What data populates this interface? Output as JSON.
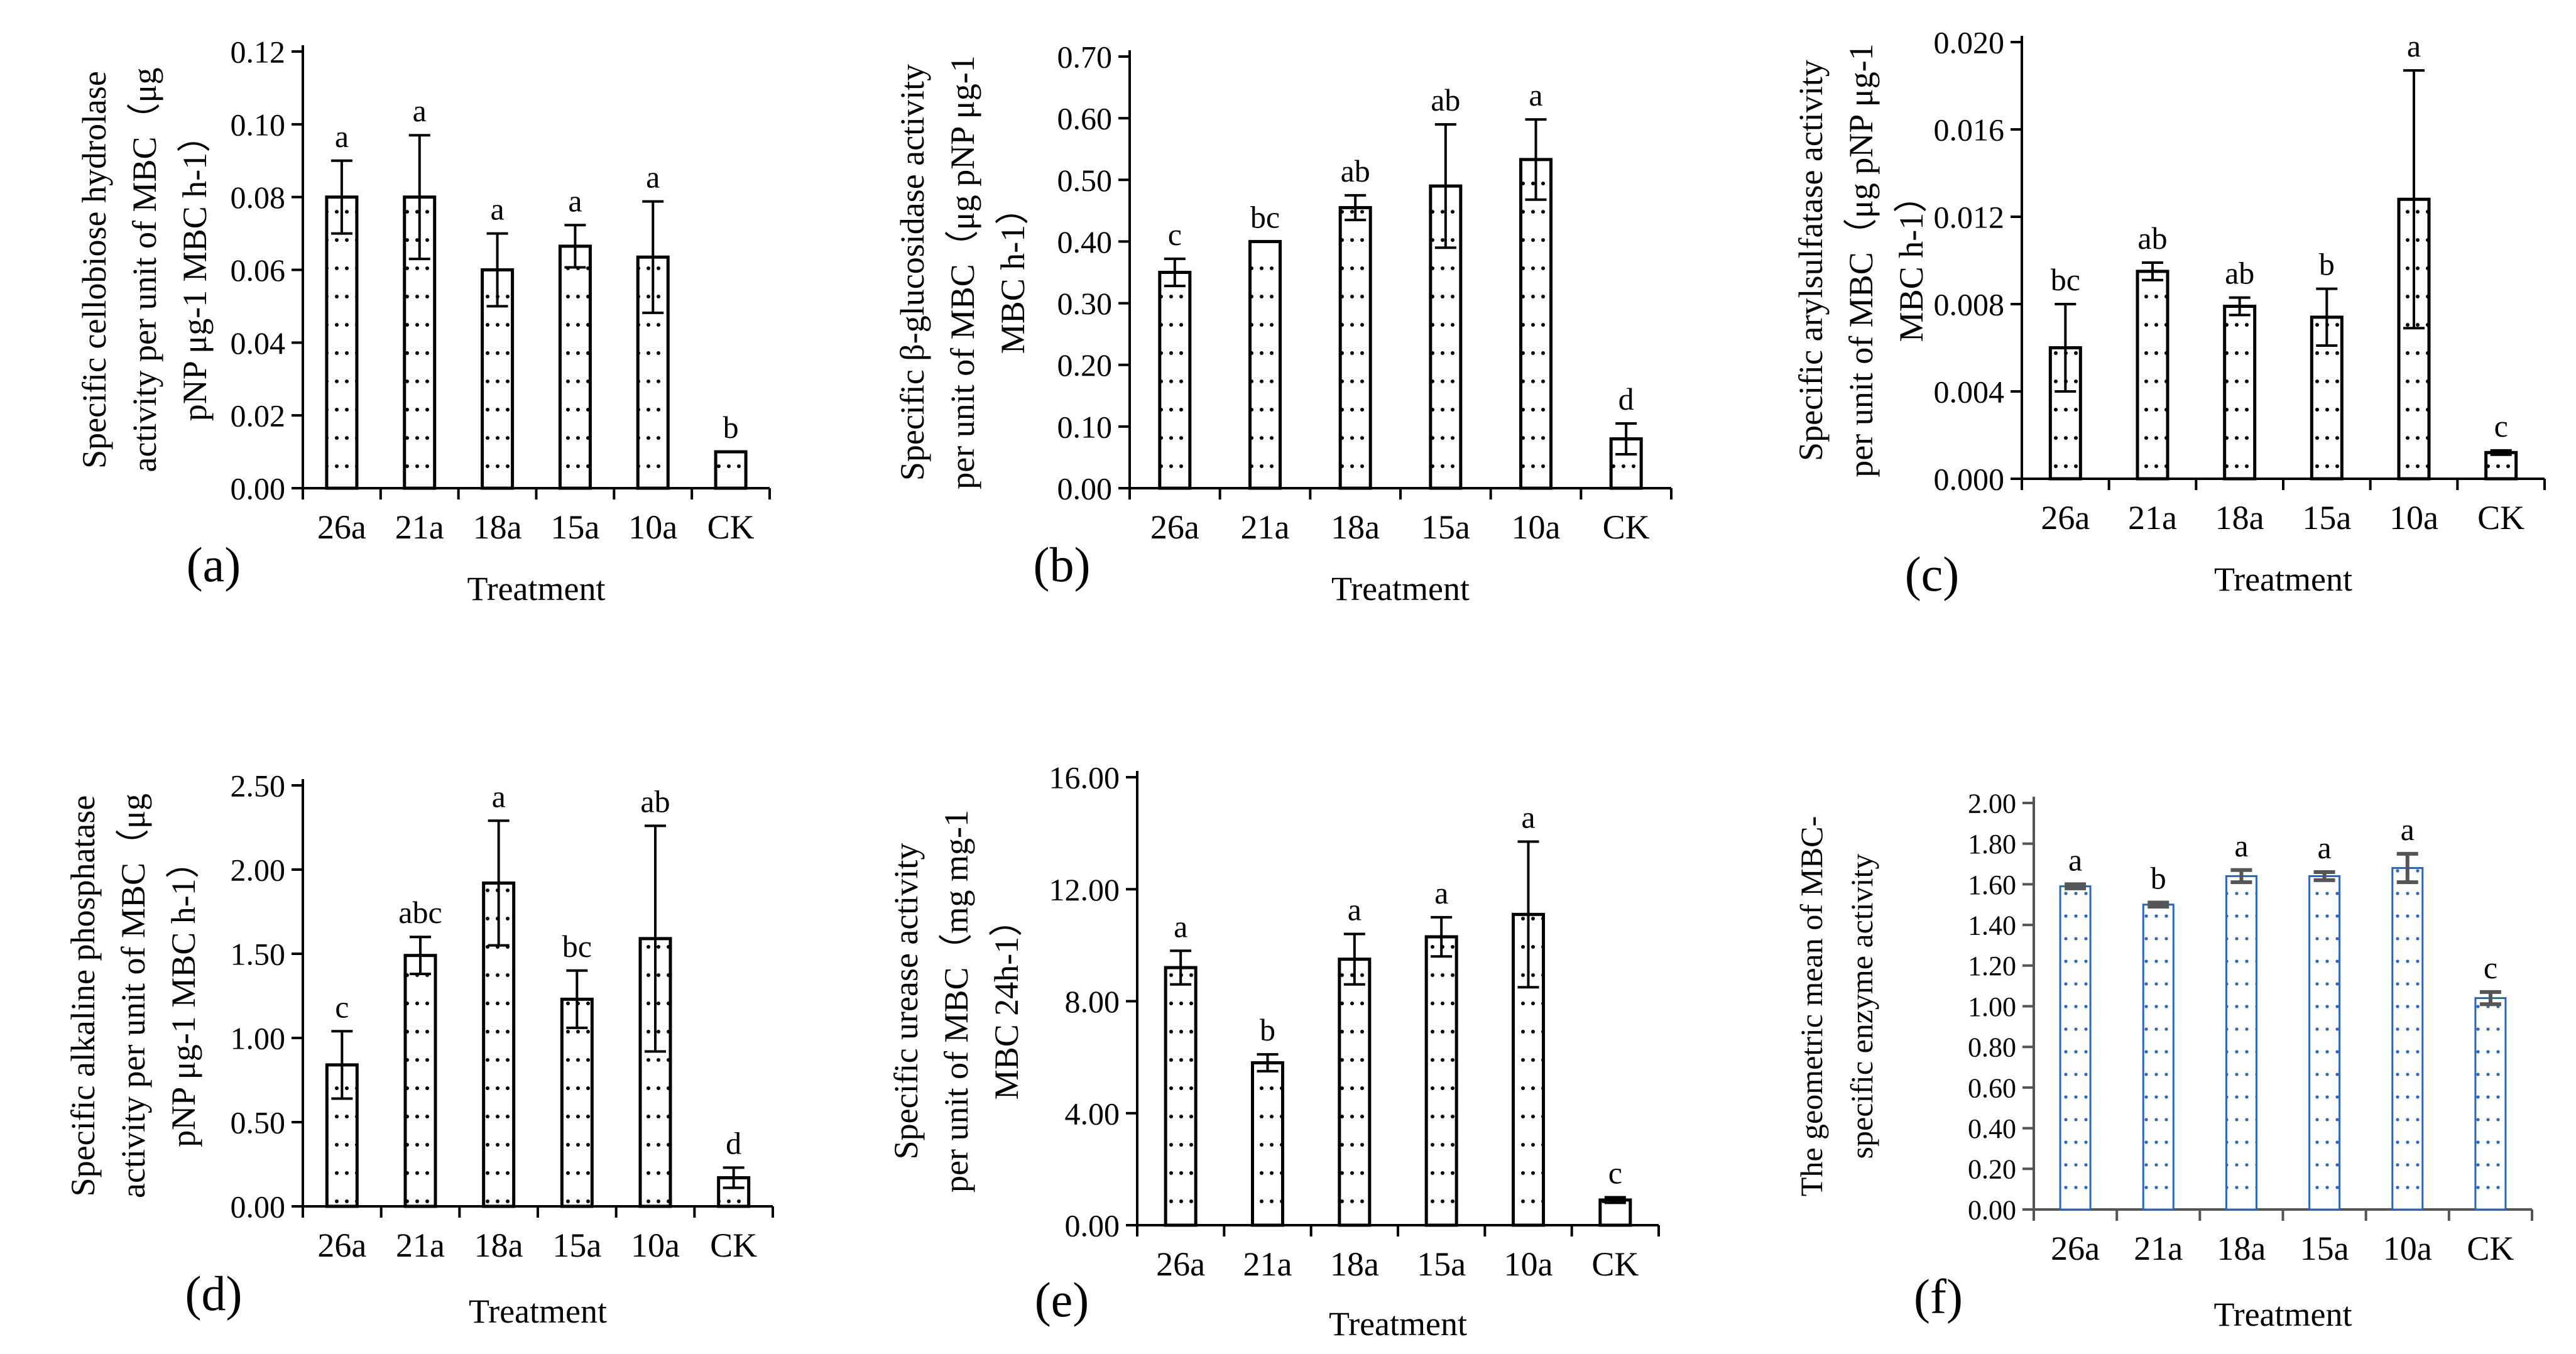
{
  "figure": {
    "treatment_label": "Treatment",
    "categories": [
      "26a",
      "21a",
      "18a",
      "15a",
      "10a",
      "CK"
    ]
  },
  "chart_data": [
    {
      "type": "bar",
      "panel": "(a)",
      "xlabel": "Treatment",
      "ylabel_lines": [
        "Specific cellobiose hydrolase",
        "activity per unit of MBC（μg",
        "pNP μg-1 MBC h-1）"
      ],
      "categories": [
        "26a",
        "21a",
        "18a",
        "15a",
        "10a",
        "CK"
      ],
      "values": [
        0.08,
        0.08,
        0.06,
        0.0665,
        0.0635,
        0.01
      ],
      "errors": [
        0.01,
        0.017,
        0.01,
        0.0058,
        0.0153,
        0.0
      ],
      "significance": [
        "a",
        "a",
        "a",
        "a",
        "a",
        "b"
      ],
      "ylim": [
        0,
        0.12
      ],
      "yticks": [
        0,
        0.02,
        0.04,
        0.06,
        0.08,
        0.1,
        0.12
      ],
      "ytick_labels": [
        "0.00",
        "0.02",
        "0.04",
        "0.06",
        "0.08",
        "0.10",
        "0.12"
      ],
      "bar_style": "dotted"
    },
    {
      "type": "bar",
      "panel": "(b)",
      "xlabel": "Treatment",
      "ylabel_lines": [
        "Specific β-glucosidase activity",
        "per unit of MBC（μg pNP μg-1",
        "MBC h-1）"
      ],
      "categories": [
        "26a",
        "21a",
        "18a",
        "15a",
        "10a",
        "CK"
      ],
      "values": [
        0.35,
        0.4,
        0.455,
        0.49,
        0.533,
        0.08
      ],
      "errors": [
        0.022,
        0.0,
        0.02,
        0.1,
        0.065,
        0.025
      ],
      "significance": [
        "c",
        "bc",
        "ab",
        "ab",
        "a",
        "d"
      ],
      "ylim": [
        0,
        0.7
      ],
      "yticks": [
        0,
        0.1,
        0.2,
        0.3,
        0.4,
        0.5,
        0.6,
        0.7
      ],
      "ytick_labels": [
        "0.00",
        "0.10",
        "0.20",
        "0.30",
        "0.40",
        "0.50",
        "0.60",
        "0.70"
      ],
      "bar_style": "dotted"
    },
    {
      "type": "bar",
      "panel": "(c)",
      "xlabel": "Treatment",
      "ylabel_lines": [
        "Specific arylsulfatase activity",
        "per unit of MBC（μg pNP μg-1",
        "MBC h-1）"
      ],
      "categories": [
        "26a",
        "21a",
        "18a",
        "15a",
        "10a",
        "CK"
      ],
      "values": [
        0.006,
        0.0095,
        0.0079,
        0.0074,
        0.0128,
        0.0012
      ],
      "errors": [
        0.002,
        0.0004,
        0.0004,
        0.0013,
        0.0059,
        0.0001
      ],
      "significance": [
        "bc",
        "ab",
        "ab",
        "b",
        "a",
        "c"
      ],
      "ylim": [
        0,
        0.02
      ],
      "yticks": [
        0,
        0.004,
        0.008,
        0.012,
        0.016,
        0.02
      ],
      "ytick_labels": [
        "0.000",
        "0.004",
        "0.008",
        "0.012",
        "0.016",
        "0.020"
      ],
      "bar_style": "dotted"
    },
    {
      "type": "bar",
      "panel": "(d)",
      "xlabel": "Treatment",
      "ylabel_lines": [
        "Specific alkaline phosphatase",
        "activity per unit of MBC（μg",
        "pNP μg-1 MBC h-1）"
      ],
      "categories": [
        "26a",
        "21a",
        "18a",
        "15a",
        "10a",
        "CK"
      ],
      "values": [
        0.84,
        1.49,
        1.92,
        1.23,
        1.59,
        0.17
      ],
      "errors": [
        0.2,
        0.11,
        0.37,
        0.17,
        0.67,
        0.06
      ],
      "significance": [
        "c",
        "abc",
        "a",
        "bc",
        "ab",
        "d"
      ],
      "ylim": [
        0,
        2.5
      ],
      "yticks": [
        0,
        0.5,
        1,
        1.5,
        2,
        2.5
      ],
      "ytick_labels": [
        "0.00",
        "0.50",
        "1.00",
        "1.50",
        "2.00",
        "2.50"
      ],
      "bar_style": "dotted"
    },
    {
      "type": "bar",
      "panel": "(e)",
      "xlabel": "Treatment",
      "ylabel_lines": [
        "Specific urease activity",
        "per unit of MBC（mg mg-1",
        "MBC 24h-1）"
      ],
      "categories": [
        "26a",
        "21a",
        "18a",
        "15a",
        "10a",
        "CK"
      ],
      "values": [
        9.2,
        5.8,
        9.5,
        10.3,
        11.1,
        0.9
      ],
      "errors": [
        0.6,
        0.3,
        0.9,
        0.7,
        2.6,
        0.1
      ],
      "significance": [
        "a",
        "b",
        "a",
        "a",
        "a",
        "c"
      ],
      "ylim": [
        0,
        16
      ],
      "yticks": [
        0,
        4,
        8,
        12,
        16
      ],
      "ytick_labels": [
        "0.00",
        "4.00",
        "8.00",
        "12.00",
        "16.00"
      ],
      "bar_style": "dotted"
    },
    {
      "type": "bar",
      "panel": "(f)",
      "xlabel": "Treatment",
      "ylabel_lines": [
        "The geometric mean of  MBC-",
        "specific enzyme activity"
      ],
      "categories": [
        "26a",
        "21a",
        "18a",
        "15a",
        "10a",
        "CK"
      ],
      "values": [
        1.59,
        1.5,
        1.64,
        1.64,
        1.68,
        1.04
      ],
      "errors": [
        0.01,
        0.01,
        0.03,
        0.02,
        0.07,
        0.03
      ],
      "significance": [
        "a",
        "b",
        "a",
        "a",
        "a",
        "c"
      ],
      "ylim": [
        0,
        2
      ],
      "yticks": [
        0,
        0.2,
        0.4,
        0.6,
        0.8,
        1,
        1.2,
        1.4,
        1.6,
        1.8,
        2
      ],
      "ytick_labels": [
        "0.00",
        "0.20",
        "0.40",
        "0.60",
        "0.80",
        "1.00",
        "1.20",
        "1.40",
        "1.60",
        "1.80",
        "2.00"
      ],
      "bar_style": "blue-dotted"
    }
  ]
}
